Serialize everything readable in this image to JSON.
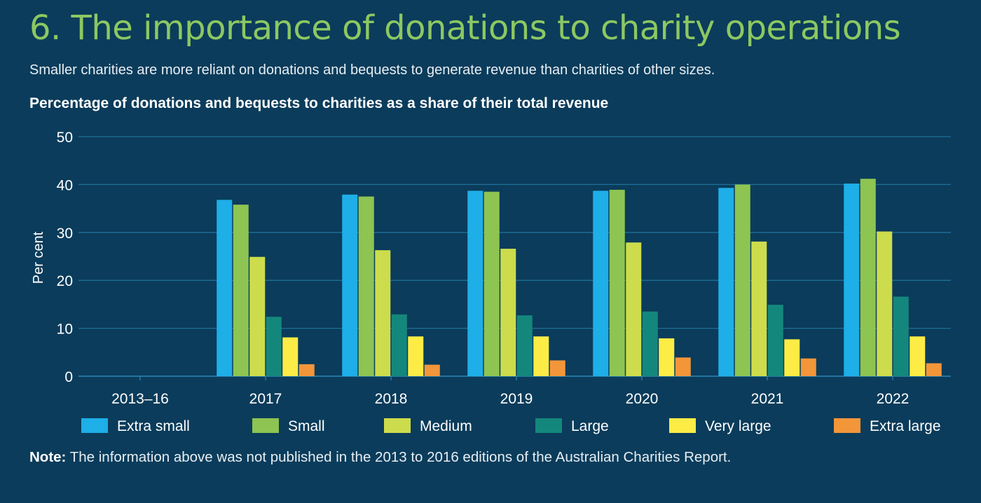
{
  "title": "6.  The importance of donations to charity operations",
  "subtitle": "Smaller charities are more reliant on donations and bequests to generate revenue than charities of other sizes.",
  "note_label": "Note:",
  "note_text": " The information above was not published in the 2013 to 2016 editions of the Australian Charities Report.",
  "chart_data": {
    "type": "bar",
    "title": "Percentage of donations and bequests to charities as a share of their total revenue",
    "ylabel": "Per cent",
    "xlabel": "",
    "ylim": [
      0,
      50
    ],
    "yticks": [
      0,
      10,
      20,
      30,
      40,
      50
    ],
    "grid": true,
    "legend_position": "bottom",
    "categories": [
      "2013–16",
      "2017",
      "2018",
      "2019",
      "2020",
      "2021",
      "2022"
    ],
    "series": [
      {
        "name": "Extra small",
        "color": "#1eaee8",
        "values": [
          null,
          36.8,
          37.9,
          38.7,
          38.7,
          39.3,
          40.2
        ]
      },
      {
        "name": "Small",
        "color": "#8dc452",
        "values": [
          null,
          35.8,
          37.5,
          38.5,
          38.9,
          40.0,
          41.2
        ]
      },
      {
        "name": "Medium",
        "color": "#cddc4c",
        "values": [
          null,
          24.9,
          26.3,
          26.6,
          27.9,
          28.1,
          30.2
        ]
      },
      {
        "name": "Large",
        "color": "#14877c",
        "values": [
          null,
          12.4,
          12.9,
          12.7,
          13.5,
          14.9,
          16.6
        ]
      },
      {
        "name": "Very large",
        "color": "#fdec45",
        "values": [
          null,
          8.1,
          8.3,
          8.3,
          7.9,
          7.7,
          8.3
        ]
      },
      {
        "name": "Extra large",
        "color": "#f3963a",
        "values": [
          null,
          2.5,
          2.4,
          3.3,
          3.9,
          3.7,
          2.7
        ]
      }
    ]
  }
}
